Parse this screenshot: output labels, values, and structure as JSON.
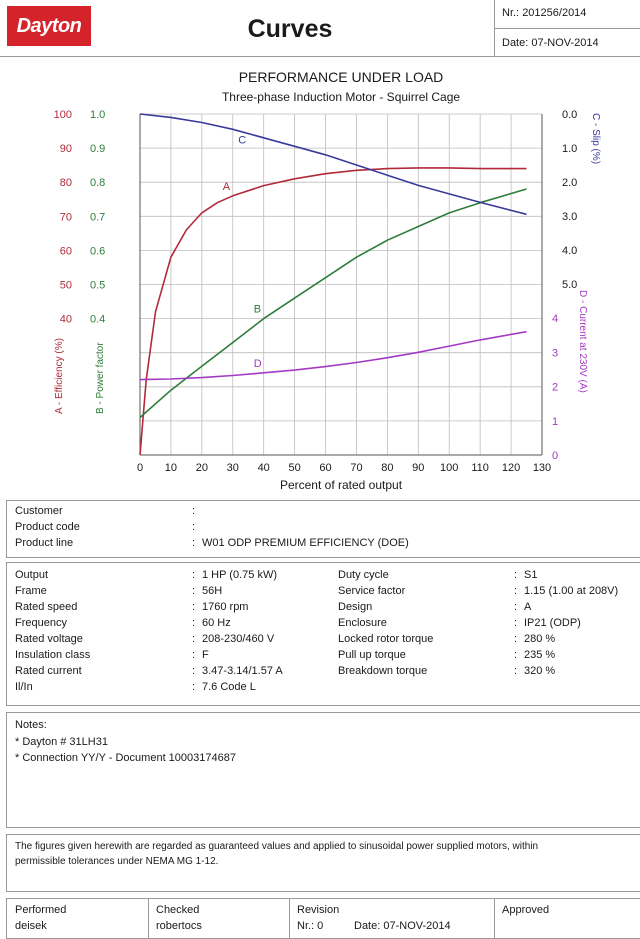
{
  "header": {
    "logo_text": "Dayton",
    "title": "Curves",
    "nr_label": "Nr.:",
    "nr_value": "201256/2014",
    "date_label": "Date:",
    "date_value": "07-NOV-2014"
  },
  "chart_data": {
    "type": "line",
    "title": "PERFORMANCE UNDER LOAD",
    "subtitle": "Three-phase Induction Motor - Squirrel Cage",
    "xlabel": "Percent of rated output",
    "x_ticks": [
      "0",
      "10",
      "20",
      "30",
      "40",
      "50",
      "60",
      "70",
      "80",
      "90",
      "100",
      "110",
      "120",
      "130"
    ],
    "xlim": [
      0,
      130
    ],
    "left_axis_a": {
      "label": "A - Efficiency (%)",
      "ticks": [
        "100",
        "90",
        "80",
        "70",
        "60",
        "50",
        "40"
      ],
      "color": "#b22a3a"
    },
    "left_axis_b": {
      "label": "B - Power factor",
      "ticks": [
        "1.0",
        "0.9",
        "0.8",
        "0.7",
        "0.6",
        "0.5",
        "0.4"
      ],
      "color": "#2e7d3a"
    },
    "right_axis_c": {
      "label": "C - Slip (%)",
      "ticks": [
        "0.0",
        "1.0",
        "2.0",
        "3.0",
        "4.0",
        "5.0"
      ],
      "color": "#3a3a9a"
    },
    "right_axis_d": {
      "label": "D - Current at 230V (A)",
      "ticks": [
        "4",
        "3",
        "2",
        "1",
        "0"
      ],
      "color": "#a43ac4"
    },
    "grid": true,
    "series": [
      {
        "name": "A",
        "color": "#b22a3a",
        "x": [
          0,
          2,
          5,
          10,
          15,
          20,
          25,
          30,
          40,
          50,
          60,
          70,
          80,
          90,
          100,
          110,
          125
        ],
        "y": [
          0,
          22,
          42,
          58,
          66,
          71,
          74,
          76,
          79,
          81,
          82.5,
          83.5,
          84,
          84.2,
          84.2,
          84,
          84
        ]
      },
      {
        "name": "B",
        "color": "#2e7d3a",
        "x": [
          0,
          10,
          20,
          30,
          40,
          50,
          60,
          70,
          80,
          90,
          100,
          110,
          125
        ],
        "y": [
          0.11,
          0.19,
          0.26,
          0.33,
          0.4,
          0.46,
          0.52,
          0.58,
          0.63,
          0.67,
          0.71,
          0.74,
          0.78
        ]
      },
      {
        "name": "C",
        "color": "#3a3a9a",
        "x": [
          0,
          10,
          20,
          30,
          40,
          50,
          60,
          70,
          80,
          90,
          100,
          110,
          125
        ],
        "y": [
          0.0,
          0.1,
          0.25,
          0.45,
          0.7,
          0.95,
          1.2,
          1.5,
          1.8,
          2.1,
          2.35,
          2.6,
          2.95
        ]
      },
      {
        "name": "D",
        "color": "#a43ac4",
        "x": [
          0,
          10,
          20,
          30,
          40,
          50,
          60,
          70,
          80,
          90,
          100,
          110,
          125
        ],
        "y": [
          2.2,
          2.22,
          2.26,
          2.32,
          2.4,
          2.48,
          2.58,
          2.7,
          2.84,
          3.0,
          3.18,
          3.36,
          3.6
        ]
      }
    ]
  },
  "product": {
    "rows": [
      {
        "label": "Customer",
        "value": ""
      },
      {
        "label": "Product code",
        "value": ""
      },
      {
        "label": "Product line",
        "value": "W01 ODP PREMIUM EFFICIENCY (DOE)"
      }
    ]
  },
  "specs": {
    "left": [
      {
        "label": "Output",
        "value": "1 HP (0.75 kW)"
      },
      {
        "label": "Frame",
        "value": "56H"
      },
      {
        "label": "Rated speed",
        "value": "1760 rpm"
      },
      {
        "label": "Frequency",
        "value": "60 Hz"
      },
      {
        "label": "Rated voltage",
        "value": "208-230/460 V"
      },
      {
        "label": "Insulation class",
        "value": "F"
      },
      {
        "label": "Rated current",
        "value": "3.47-3.14/1.57 A"
      },
      {
        "label": "Il/In",
        "value": "7.6    Code L"
      }
    ],
    "right": [
      {
        "label": "Duty cycle",
        "value": "S1"
      },
      {
        "label": "Service factor",
        "value": "1.15    (1.00 at 208V)"
      },
      {
        "label": "Design",
        "value": "A"
      },
      {
        "label": "Enclosure",
        "value": "IP21 (ODP)"
      },
      {
        "label": "Locked rotor torque",
        "value": "280 %"
      },
      {
        "label": "Pull up torque",
        "value": "235 %"
      },
      {
        "label": "Breakdown torque",
        "value": "320 %"
      }
    ]
  },
  "notes": {
    "title": "Notes:",
    "lines": [
      "* Dayton # 31LH31",
      "* Connection YY/Y - Document 10003174687"
    ]
  },
  "disclaimer": {
    "line1": "The figures given herewith are regarded as guaranteed values and applied to sinusoidal  power supplied motors, within",
    "line2": "permissible tolerances under NEMA MG 1-12."
  },
  "footer": {
    "performed_label": "Performed",
    "performed_value": "deisek",
    "checked_label": "Checked",
    "checked_value": "robertocs",
    "revision_label": "Revision",
    "revision_nr": "Nr.: 0",
    "revision_date": "Date: 07-NOV-2014",
    "approved_label": "Approved"
  }
}
